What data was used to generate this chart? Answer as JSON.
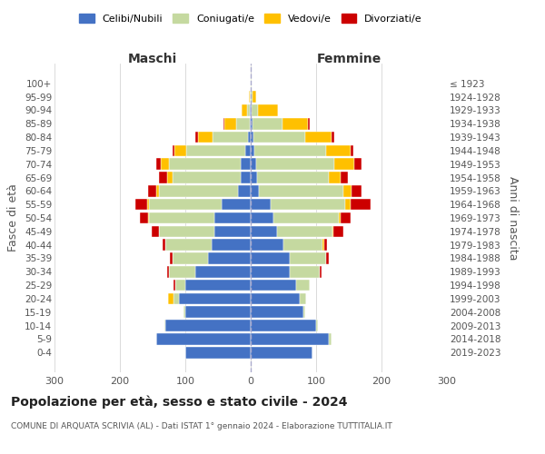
{
  "age_groups": [
    "0-4",
    "5-9",
    "10-14",
    "15-19",
    "20-24",
    "25-29",
    "30-34",
    "35-39",
    "40-44",
    "45-49",
    "50-54",
    "55-59",
    "60-64",
    "65-69",
    "70-74",
    "75-79",
    "80-84",
    "85-89",
    "90-94",
    "95-99",
    "100+"
  ],
  "birth_years": [
    "2019-2023",
    "2014-2018",
    "2009-2013",
    "2004-2008",
    "1999-2003",
    "1994-1998",
    "1989-1993",
    "1984-1988",
    "1979-1983",
    "1974-1978",
    "1969-1973",
    "1964-1968",
    "1959-1963",
    "1954-1958",
    "1949-1953",
    "1944-1948",
    "1939-1943",
    "1934-1938",
    "1929-1933",
    "1924-1928",
    "≤ 1923"
  ],
  "colors": {
    "celibe": "#4472c4",
    "coniugato": "#c5d9a0",
    "vedovo": "#ffc000",
    "divorziato": "#cc0000"
  },
  "maschi": {
    "celibe": [
      100,
      145,
      130,
      100,
      110,
      100,
      85,
      65,
      60,
      55,
      55,
      45,
      20,
      15,
      15,
      8,
      4,
      2,
      1,
      0,
      0
    ],
    "coniugato": [
      0,
      0,
      2,
      3,
      8,
      15,
      40,
      55,
      70,
      85,
      100,
      110,
      120,
      105,
      110,
      90,
      55,
      20,
      5,
      2,
      0
    ],
    "vedovo": [
      0,
      0,
      0,
      0,
      8,
      0,
      0,
      0,
      0,
      0,
      2,
      3,
      5,
      8,
      12,
      18,
      22,
      18,
      8,
      1,
      0
    ],
    "divorziato": [
      0,
      0,
      0,
      0,
      0,
      3,
      3,
      3,
      5,
      12,
      12,
      18,
      12,
      12,
      8,
      4,
      4,
      2,
      0,
      0,
      0
    ]
  },
  "femmine": {
    "celibe": [
      95,
      120,
      100,
      80,
      75,
      70,
      60,
      60,
      50,
      40,
      35,
      30,
      12,
      10,
      8,
      5,
      4,
      3,
      1,
      0,
      0
    ],
    "coniugato": [
      0,
      3,
      3,
      3,
      10,
      20,
      45,
      55,
      60,
      85,
      100,
      115,
      130,
      110,
      120,
      110,
      80,
      45,
      10,
      3,
      1
    ],
    "vedovo": [
      0,
      0,
      0,
      0,
      0,
      0,
      0,
      0,
      2,
      2,
      3,
      8,
      12,
      18,
      30,
      38,
      40,
      40,
      30,
      5,
      1
    ],
    "divorziato": [
      0,
      0,
      0,
      0,
      0,
      0,
      3,
      5,
      5,
      15,
      15,
      30,
      15,
      10,
      12,
      4,
      4,
      2,
      0,
      0,
      0
    ]
  },
  "xlim": 300,
  "title": "Popolazione per età, sesso e stato civile - 2024",
  "subtitle": "COMUNE DI ARQUATA SCRIVIA (AL) - Dati ISTAT 1° gennaio 2024 - Elaborazione TUTTITALIA.IT",
  "ylabel_left": "Fasce di età",
  "ylabel_right": "Anni di nascita",
  "xlabel_maschi": "Maschi",
  "xlabel_femmine": "Femmine",
  "legend_labels": [
    "Celibi/Nubili",
    "Coniugati/e",
    "Vedovi/e",
    "Divorziati/e"
  ],
  "background_color": "#ffffff",
  "grid_color": "#cccccc"
}
